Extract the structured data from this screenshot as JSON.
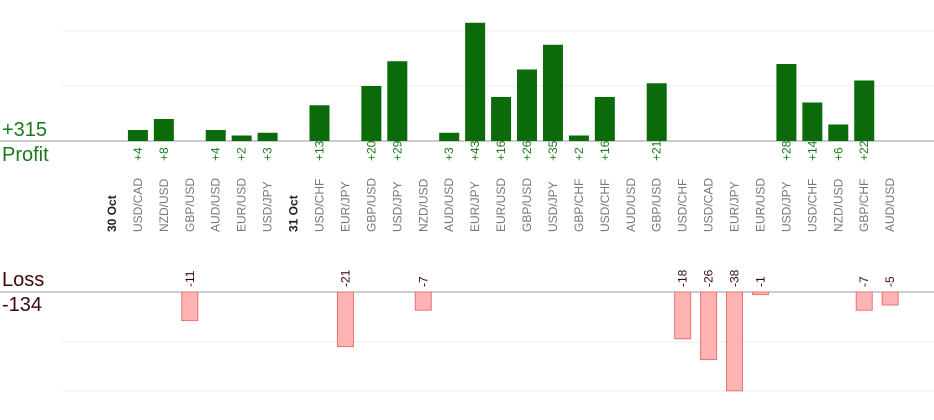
{
  "summary": {
    "profit_total": "+315",
    "profit_label": "Profit",
    "loss_label": "Loss",
    "loss_total": "-134"
  },
  "colors": {
    "profit_bar": "#0b6b0b",
    "profit_text": "#1a7a1a",
    "loss_bar": "#ffb3b3",
    "loss_border": "#e57373",
    "loss_text": "#3a0a0a",
    "axis": "#999999",
    "grid": "#eeeeee",
    "category_text": "#777777"
  },
  "chart_data": {
    "type": "bar",
    "categories": [
      "30 Oct",
      "USD/CAD",
      "NZD/USD",
      "GBP/USD",
      "AUD/USD",
      "EUR/USD",
      "USD/JPY",
      "31 Oct",
      "USD/CHF",
      "EUR/JPY",
      "GBP/USD",
      "USD/JPY",
      "NZD/USD",
      "AUD/USD",
      "EUR/JPY",
      "EUR/USD",
      "GBP/USD",
      "USD/JPY",
      "GBP/CHF",
      "USD/CHF",
      "AUD/USD",
      "GBP/USD",
      "USD/CHF",
      "USD/CAD",
      "EUR/JPY",
      "EUR/USD",
      "USD/JPY",
      "USD/CHF",
      "NZD/USD",
      "GBP/CHF",
      "AUD/USD"
    ],
    "date_headers": [
      "30 Oct",
      "31 Oct"
    ],
    "series": [
      {
        "name": "Profit",
        "values": [
          null,
          4,
          8,
          null,
          4,
          2,
          3,
          null,
          13,
          null,
          20,
          29,
          null,
          3,
          43,
          16,
          26,
          35,
          2,
          16,
          null,
          21,
          null,
          null,
          null,
          null,
          28,
          14,
          6,
          22,
          null
        ]
      },
      {
        "name": "Loss",
        "values": [
          null,
          null,
          null,
          -11,
          null,
          null,
          null,
          null,
          null,
          -21,
          null,
          null,
          -7,
          null,
          null,
          null,
          null,
          null,
          null,
          null,
          null,
          null,
          -18,
          -26,
          -38,
          -1,
          null,
          null,
          null,
          -7,
          -5
        ]
      }
    ],
    "profit_axis_max": 20,
    "loss_axis_max": 20,
    "grid": true
  }
}
